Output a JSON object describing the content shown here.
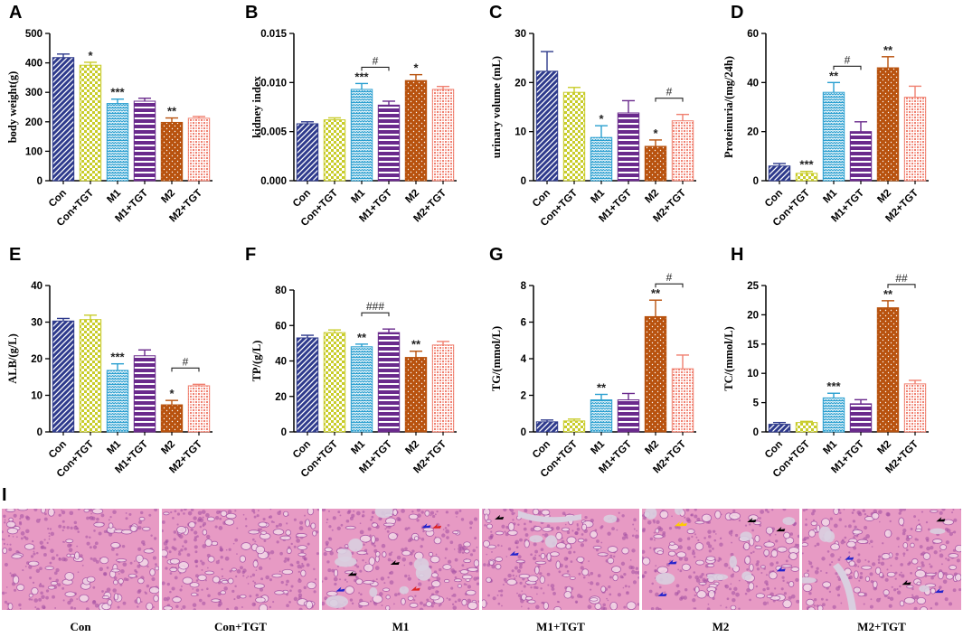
{
  "colors": {
    "con": "#2e3a8c",
    "con_tgt": "#c8cc2a",
    "m1": "#2a9fd0",
    "m1_tgt": "#6a2a8c",
    "m2": "#b8520e",
    "m2_tgt": "#f08070",
    "tissue_pink": "#e79ac4",
    "tissue_purple": "#a24fa3",
    "lumen": "#d9cfe0"
  },
  "chart_data": [
    {
      "letter": "A",
      "type": "bar",
      "ylabel": "body weight(g)",
      "ylim": [
        0,
        500
      ],
      "ticks": [
        0,
        100,
        200,
        300,
        400,
        500
      ],
      "tick_labels": [
        "0",
        "100",
        "200",
        "300",
        "400",
        "500"
      ],
      "categories": [
        "Con",
        "Con+TGT",
        "M1",
        "M1+TGT",
        "M2",
        "M2+TGT"
      ],
      "values": [
        418,
        392,
        262,
        270,
        198,
        212
      ],
      "errors": [
        12,
        10,
        15,
        10,
        15,
        6
      ],
      "stars": [
        "",
        "*",
        "***",
        "",
        "**",
        ""
      ],
      "brackets": []
    },
    {
      "letter": "B",
      "type": "bar",
      "ylabel": "kidney index",
      "ylim": [
        0,
        0.015
      ],
      "ticks": [
        0,
        0.005,
        0.01,
        0.015
      ],
      "tick_labels": [
        "0.000",
        "0.005",
        "0.010",
        "0.015"
      ],
      "categories": [
        "Con",
        "Con+TGT",
        "M1",
        "M1+TGT",
        "M2",
        "M2+TGT"
      ],
      "values": [
        0.0058,
        0.0062,
        0.0093,
        0.0077,
        0.0102,
        0.0093
      ],
      "errors": [
        0.0002,
        0.0002,
        0.0006,
        0.0004,
        0.0006,
        0.0003
      ],
      "stars": [
        "",
        "",
        "***",
        "",
        "*",
        ""
      ],
      "brackets": [
        {
          "from": 2,
          "to": 3,
          "label": "#"
        }
      ]
    },
    {
      "letter": "C",
      "type": "bar",
      "ylabel": "urinary volume (mL)",
      "ylim": [
        0,
        30
      ],
      "ticks": [
        0,
        10,
        20,
        30
      ],
      "tick_labels": [
        "0",
        "10",
        "20",
        "30"
      ],
      "categories": [
        "Con",
        "Con+TGT",
        "M1",
        "M1+TGT",
        "M2",
        "M2+TGT"
      ],
      "values": [
        22.3,
        18,
        8.8,
        13.8,
        7,
        12.2
      ],
      "errors": [
        4,
        1,
        2.4,
        2.5,
        1.3,
        1.3
      ],
      "stars": [
        "",
        "",
        "*",
        "",
        "*",
        ""
      ],
      "brackets": [
        {
          "from": 4,
          "to": 5,
          "label": "#"
        }
      ]
    },
    {
      "letter": "D",
      "type": "bar",
      "ylabel": "Proteinuria/(mg/24h)",
      "ylim": [
        0,
        60
      ],
      "ticks": [
        0,
        20,
        40,
        60
      ],
      "tick_labels": [
        "0",
        "20",
        "40",
        "60"
      ],
      "categories": [
        "Con",
        "Con+TGT",
        "M1",
        "M1+TGT",
        "M2",
        "M2+TGT"
      ],
      "values": [
        6,
        3,
        36,
        20,
        46,
        34
      ],
      "errors": [
        1,
        0.8,
        4,
        4,
        4.5,
        4.5
      ],
      "stars": [
        "",
        "***",
        "**",
        "",
        "**",
        ""
      ],
      "brackets": [
        {
          "from": 2,
          "to": 3,
          "label": "#"
        }
      ]
    },
    {
      "letter": "E",
      "type": "bar",
      "ylabel": "ALB/(g/L)",
      "ylim": [
        0,
        40
      ],
      "ticks": [
        0,
        10,
        20,
        30,
        40
      ],
      "tick_labels": [
        "0",
        "10",
        "20",
        "30",
        "40"
      ],
      "categories": [
        "Con",
        "Con+TGT",
        "M1",
        "M1+TGT",
        "M2",
        "M2+TGT"
      ],
      "values": [
        30.3,
        30.7,
        16.8,
        20.8,
        7.4,
        12.6
      ],
      "errors": [
        0.7,
        1.2,
        1.8,
        1.6,
        1.2,
        0.4
      ],
      "stars": [
        "",
        "",
        "***",
        "",
        "*",
        ""
      ],
      "brackets": [
        {
          "from": 4,
          "to": 5,
          "label": "#"
        }
      ]
    },
    {
      "letter": "F",
      "type": "bar",
      "ylabel": "TP/(g/L)",
      "ylim": [
        0,
        80
      ],
      "ticks": [
        0,
        20,
        40,
        60,
        80
      ],
      "tick_labels": [
        "0",
        "20",
        "40",
        "60",
        "80"
      ],
      "categories": [
        "Con",
        "Con+TGT",
        "M1",
        "M1+TGT",
        "M2",
        "M2+TGT"
      ],
      "values": [
        53,
        56,
        48,
        56,
        42,
        49
      ],
      "errors": [
        1.5,
        1.5,
        1.5,
        2,
        3.5,
        2
      ],
      "stars": [
        "",
        "",
        "**",
        "",
        "**",
        ""
      ],
      "brackets": [
        {
          "from": 2,
          "to": 3,
          "label": "###"
        }
      ]
    },
    {
      "letter": "G",
      "type": "bar",
      "ylabel": "TG/(mmol/L)",
      "ylim": [
        0,
        8
      ],
      "ticks": [
        0,
        2,
        4,
        6,
        8
      ],
      "tick_labels": [
        "0",
        "2",
        "4",
        "6",
        "8"
      ],
      "categories": [
        "Con",
        "Con+TGT",
        "M1",
        "M1+TGT",
        "M2",
        "M2+TGT"
      ],
      "values": [
        0.55,
        0.6,
        1.75,
        1.75,
        6.3,
        3.45
      ],
      "errors": [
        0.1,
        0.1,
        0.3,
        0.35,
        0.9,
        0.75
      ],
      "stars": [
        "",
        "",
        "**",
        "",
        "**",
        ""
      ],
      "brackets": [
        {
          "from": 4,
          "to": 5,
          "label": "#"
        }
      ]
    },
    {
      "letter": "H",
      "type": "bar",
      "ylabel": "TC/(mmol/L)",
      "ylim": [
        0,
        25
      ],
      "ticks": [
        0,
        5,
        10,
        15,
        20,
        25
      ],
      "tick_labels": [
        "0",
        "5",
        "10",
        "15",
        "20",
        "25"
      ],
      "categories": [
        "Con",
        "Con+TGT",
        "M1",
        "M1+TGT",
        "M2",
        "M2+TGT"
      ],
      "values": [
        1.3,
        1.6,
        5.8,
        4.8,
        21.2,
        8.2
      ],
      "errors": [
        0.3,
        0.2,
        0.8,
        0.7,
        1.2,
        0.6
      ],
      "stars": [
        "",
        "",
        "***",
        "",
        "**",
        ""
      ],
      "brackets": [
        {
          "from": 4,
          "to": 5,
          "label": "##"
        }
      ]
    }
  ],
  "histology": {
    "panel_letter": "I",
    "labels": [
      "Con",
      "Con+TGT",
      "M1",
      "M1+TGT",
      "M2",
      "M2+TGT"
    ]
  }
}
